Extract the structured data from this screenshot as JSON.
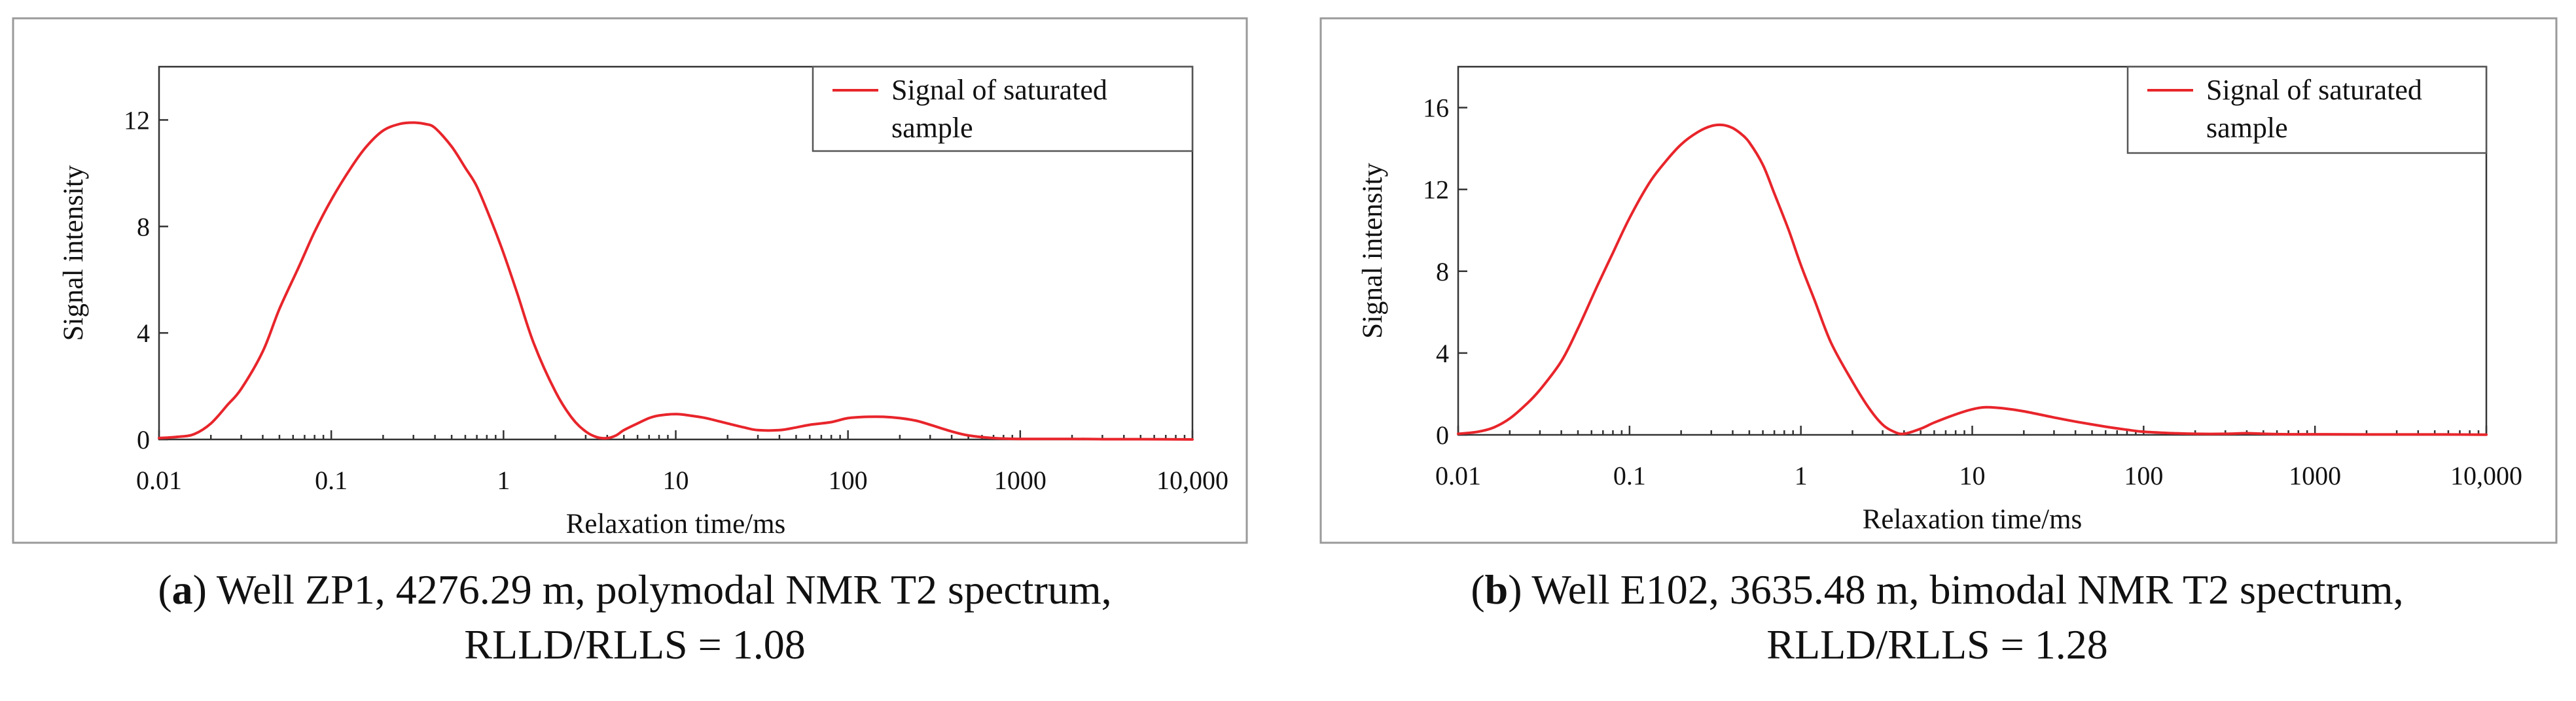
{
  "colors": {
    "series": "#e8252b"
  },
  "chart_data": [
    {
      "type": "line",
      "title": "",
      "xlabel": "Relaxation time/ms",
      "ylabel": "Signal intensity",
      "xscale": "log",
      "xlim": [
        0.01,
        10000
      ],
      "ylim": [
        0,
        14
      ],
      "xticks": [
        0.01,
        0.1,
        1,
        10,
        100,
        1000,
        10000
      ],
      "xtick_labels": [
        "0.01",
        "0.1",
        "1",
        "10",
        "100",
        "1000",
        "10,000"
      ],
      "yticks": [
        0,
        4,
        8,
        12
      ],
      "ytick_labels": [
        "0",
        "4",
        "8",
        "12"
      ],
      "legend": {
        "entries": [
          "Signal of saturated",
          "sample"
        ],
        "position": "top-right"
      },
      "series": [
        {
          "name": "Signal of saturated sample",
          "x": [
            0.01,
            0.013,
            0.016,
            0.02,
            0.025,
            0.03,
            0.04,
            0.05,
            0.065,
            0.08,
            0.1,
            0.13,
            0.16,
            0.2,
            0.25,
            0.3,
            0.35,
            0.4,
            0.5,
            0.6,
            0.7,
            0.85,
            1.0,
            1.2,
            1.5,
            2.0,
            2.5,
            3.0,
            3.5,
            4.0,
            4.5,
            5.0,
            6.0,
            7.0,
            8.0,
            10,
            12,
            15,
            20,
            25,
            30,
            40,
            50,
            60,
            80,
            100,
            130,
            160,
            200,
            250,
            300,
            400,
            500,
            700,
            1000,
            2000,
            3000,
            5000,
            10000
          ],
          "values": [
            0.05,
            0.1,
            0.2,
            0.6,
            1.3,
            1.9,
            3.3,
            4.9,
            6.5,
            7.8,
            9.0,
            10.2,
            11.0,
            11.6,
            11.85,
            11.9,
            11.85,
            11.7,
            11.0,
            10.2,
            9.5,
            8.2,
            7.0,
            5.5,
            3.6,
            1.8,
            0.8,
            0.3,
            0.08,
            0.05,
            0.15,
            0.35,
            0.6,
            0.8,
            0.9,
            0.95,
            0.9,
            0.8,
            0.6,
            0.45,
            0.35,
            0.35,
            0.45,
            0.55,
            0.65,
            0.8,
            0.85,
            0.85,
            0.8,
            0.7,
            0.55,
            0.3,
            0.15,
            0.05,
            0.02,
            0.02,
            0.01,
            0.01,
            0.0
          ]
        }
      ]
    },
    {
      "type": "line",
      "title": "",
      "xlabel": "Relaxation time/ms",
      "ylabel": "Signal intensity",
      "xscale": "log",
      "xlim": [
        0.01,
        10000
      ],
      "ylim": [
        0,
        18
      ],
      "xticks": [
        0.01,
        0.1,
        1,
        10,
        100,
        1000,
        10000
      ],
      "xtick_labels": [
        "0.01",
        "0.1",
        "1",
        "10",
        "100",
        "1000",
        "10,000"
      ],
      "yticks": [
        0,
        4,
        8,
        12,
        16
      ],
      "ytick_labels": [
        "0",
        "4",
        "8",
        "12",
        "16"
      ],
      "legend": {
        "entries": [
          "Signal of saturated",
          "sample"
        ],
        "position": "top-right"
      },
      "series": [
        {
          "name": "Signal of saturated sample",
          "x": [
            0.01,
            0.013,
            0.016,
            0.02,
            0.025,
            0.03,
            0.04,
            0.05,
            0.065,
            0.08,
            0.1,
            0.13,
            0.16,
            0.2,
            0.25,
            0.3,
            0.35,
            0.4,
            0.45,
            0.5,
            0.6,
            0.7,
            0.85,
            1.0,
            1.2,
            1.5,
            2.0,
            2.5,
            3.0,
            3.5,
            4.0,
            5.0,
            6.0,
            8.0,
            10,
            12,
            15,
            20,
            30,
            40,
            60,
            80,
            100,
            150,
            200,
            300,
            400,
            500,
            700,
            1000,
            2000,
            5000,
            10000
          ],
          "values": [
            0.05,
            0.15,
            0.35,
            0.8,
            1.5,
            2.2,
            3.6,
            5.2,
            7.3,
            8.9,
            10.6,
            12.3,
            13.3,
            14.2,
            14.8,
            15.1,
            15.15,
            15.0,
            14.7,
            14.3,
            13.2,
            11.8,
            10.0,
            8.3,
            6.6,
            4.5,
            2.6,
            1.3,
            0.5,
            0.15,
            0.05,
            0.3,
            0.6,
            1.0,
            1.25,
            1.35,
            1.3,
            1.15,
            0.85,
            0.65,
            0.4,
            0.25,
            0.15,
            0.08,
            0.05,
            0.05,
            0.08,
            0.05,
            0.03,
            0.03,
            0.02,
            0.02,
            0.01
          ]
        }
      ]
    }
  ],
  "captions": [
    {
      "label": "a",
      "line1": " Well ZP1, 4276.29 m, polymodal NMR T2 spectrum,",
      "line2": "RLLD/RLLS = 1.08"
    },
    {
      "label": "b",
      "line1": " Well E102, 3635.48 m, bimodal NMR T2 spectrum,",
      "line2": "RLLD/RLLS = 1.28"
    }
  ]
}
